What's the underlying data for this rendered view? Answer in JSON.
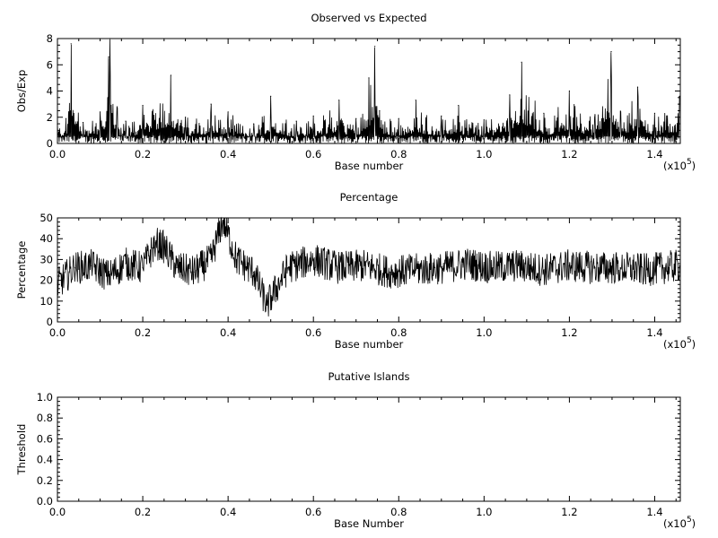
{
  "chart_data": [
    {
      "type": "line",
      "title": "Observed vs Expected",
      "xlabel": "Base number",
      "ylabel": "Obs/Exp",
      "xlim": [
        0,
        146000
      ],
      "ylim": [
        0,
        8
      ],
      "x_ticks": [
        "0.0",
        "0.2",
        "0.4",
        "0.6",
        "0.8",
        "1.0",
        "1.2",
        "1.4"
      ],
      "y_ticks": [
        "0",
        "2",
        "4",
        "6",
        "8"
      ],
      "x_scale_label": "(x10",
      "x_scale_exp": "5",
      "x": [
        0,
        2000,
        3200,
        6000,
        10000,
        12000,
        12300,
        14000,
        16000,
        20000,
        26600,
        30000,
        36000,
        40000,
        46000,
        50000,
        56000,
        60000,
        66000,
        70000,
        73000,
        74400,
        75500,
        80000,
        84000,
        90000,
        94000,
        100000,
        106000,
        108800,
        114000,
        120000,
        126000,
        129800,
        132000,
        136000,
        140000,
        145800
      ],
      "values": [
        1.5,
        1.9,
        7.6,
        1.6,
        2.4,
        6.6,
        8.0,
        2.7,
        1.7,
        2.9,
        5.2,
        2.0,
        3.0,
        2.4,
        1.5,
        3.6,
        1.7,
        2.1,
        3.3,
        1.9,
        5.0,
        7.4,
        2.5,
        1.9,
        3.3,
        2.1,
        2.9,
        1.8,
        3.7,
        6.2,
        2.3,
        4.0,
        2.2,
        7.0,
        2.4,
        4.3,
        2.3,
        3.6
      ]
    },
    {
      "type": "line",
      "title": "Percentage",
      "xlabel": "Base number",
      "ylabel": "Percentage",
      "xlim": [
        0,
        146000
      ],
      "ylim": [
        0,
        50
      ],
      "x_ticks": [
        "0.0",
        "0.2",
        "0.4",
        "0.6",
        "0.8",
        "1.0",
        "1.2",
        "1.4"
      ],
      "y_ticks": [
        "0",
        "10",
        "20",
        "30",
        "40",
        "50"
      ],
      "x_scale_label": "(x10",
      "x_scale_exp": "5",
      "x": [
        0,
        4000,
        8000,
        12000,
        16000,
        20000,
        23000,
        25000,
        28000,
        32000,
        36000,
        38800,
        42000,
        46000,
        49100,
        54000,
        60000,
        66000,
        72000,
        78000,
        84000,
        90000,
        96000,
        102000,
        108000,
        114000,
        120000,
        126000,
        132000,
        138000,
        142000,
        145800
      ],
      "values": [
        18,
        26,
        27,
        22,
        28,
        26,
        38,
        36,
        26,
        24,
        30,
        49,
        30,
        24,
        8,
        26,
        30,
        26,
        27,
        24,
        25,
        26,
        28,
        26,
        27,
        25,
        27,
        26,
        26,
        25,
        26,
        27
      ]
    },
    {
      "type": "line",
      "title": "Putative Islands",
      "xlabel": "Base Number",
      "ylabel": "Threshold",
      "xlim": [
        0,
        146000
      ],
      "ylim": [
        0,
        1
      ],
      "x_ticks": [
        "0.0",
        "0.2",
        "0.4",
        "0.6",
        "0.8",
        "1.0",
        "1.2",
        "1.4"
      ],
      "y_ticks": [
        "0.0",
        "0.2",
        "0.4",
        "0.6",
        "0.8",
        "1.0"
      ],
      "x_scale_label": "(x10",
      "x_scale_exp": "5",
      "x": [],
      "values": []
    }
  ]
}
